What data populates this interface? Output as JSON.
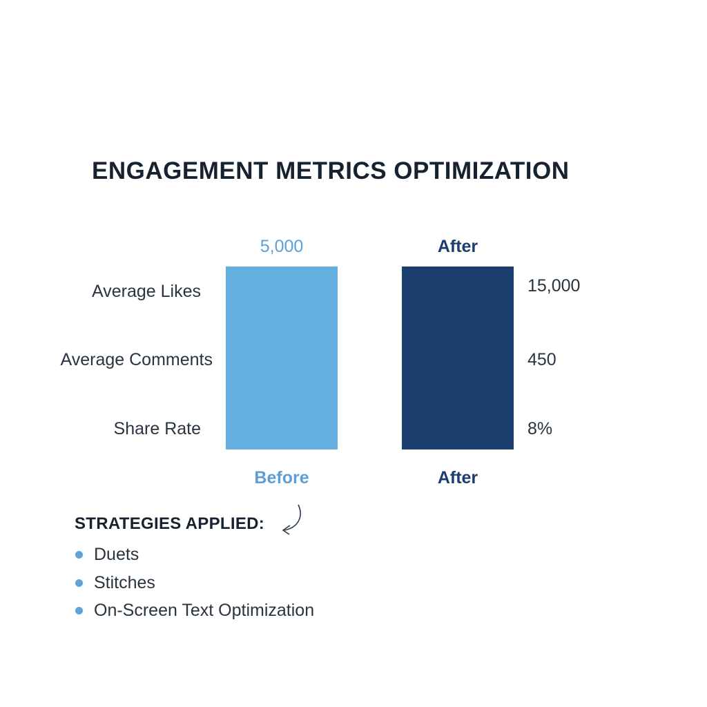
{
  "chart_data": {
    "type": "bar",
    "title": "ENGAGEMENT METRICS OPTIMIZATION",
    "categories": [
      "Before",
      "After"
    ],
    "bars": [
      {
        "name": "Before",
        "top_label": "5,000",
        "bottom_label": "Before",
        "color": "#64aee0",
        "label_color": "#5b9fd6"
      },
      {
        "name": "After",
        "top_label": "After",
        "bottom_label": "After",
        "color": "#1a3f6e",
        "label_color": "#1b3d6b"
      }
    ],
    "row_labels": [
      "Average Likes",
      "Average Comments",
      "Share Rate"
    ],
    "after_values": [
      "15,000",
      "450",
      "8%"
    ]
  },
  "strategies": {
    "heading": "STRATEGIES APPLIED:",
    "items": [
      "Duets",
      "Stitches",
      "On-Screen Text Optimization"
    ]
  }
}
